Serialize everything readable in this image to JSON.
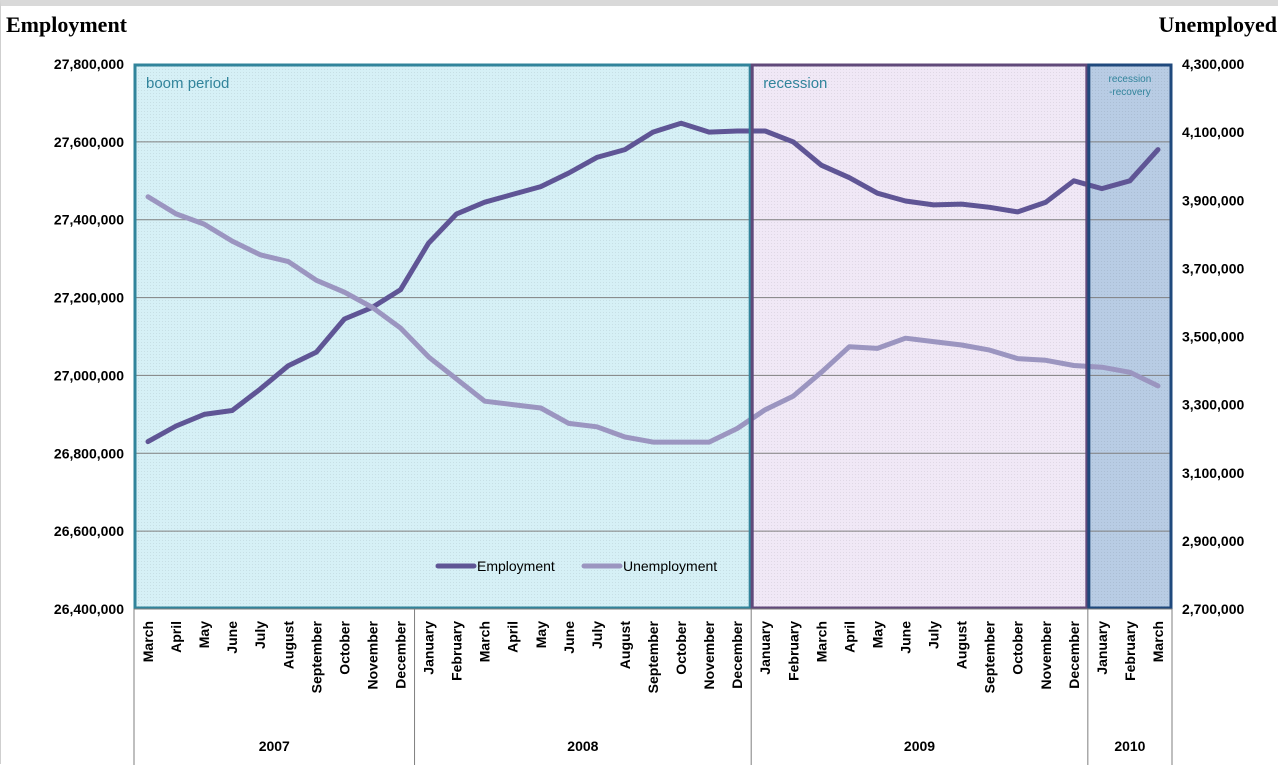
{
  "chart_data": {
    "type": "line",
    "y_left_label": "Employment",
    "y_right_label": "Unemployed",
    "y_left_range": [
      26400000,
      27800000
    ],
    "y_left_ticks": [
      "27,800,000",
      "27,600,000",
      "27,400,000",
      "27,200,000",
      "27,000,000",
      "26,800,000",
      "26,600,000",
      "26,400,000"
    ],
    "y_right_range": [
      2700000,
      4300000
    ],
    "y_right_ticks": [
      "4,300,000",
      "4,100,000",
      "3,900,000",
      "3,700,000",
      "3,500,000",
      "3,300,000",
      "3,100,000",
      "2,900,000",
      "2,700,000"
    ],
    "grid": true,
    "legend_position": "bottom-center",
    "months": [
      "March",
      "April",
      "May",
      "June",
      "July",
      "August",
      "September",
      "October",
      "November",
      "December",
      "January",
      "February",
      "March",
      "April",
      "May",
      "June",
      "July",
      "August",
      "September",
      "October",
      "November",
      "December",
      "January",
      "February",
      "March",
      "April",
      "May",
      "June",
      "July",
      "August",
      "September",
      "October",
      "November",
      "December",
      "January",
      "February",
      "March"
    ],
    "years": [
      {
        "label": "2007",
        "start": 0,
        "count": 10
      },
      {
        "label": "2008",
        "start": 10,
        "count": 12
      },
      {
        "label": "2009",
        "start": 22,
        "count": 12
      },
      {
        "label": "2010",
        "start": 34,
        "count": 3
      }
    ],
    "regions": [
      {
        "label": "boom period",
        "start": 0,
        "end": 22,
        "fill": "#d6f0f6",
        "border": "#31849b"
      },
      {
        "label": "recession",
        "start": 22,
        "end": 34,
        "fill": "#f0e8f6",
        "border": "#60497a"
      },
      {
        "label": "recession\n-recovery",
        "start": 34,
        "end": 37,
        "fill": "#b8cce4",
        "border": "#1f497d"
      }
    ],
    "series": [
      {
        "name": "Employment",
        "axis": "left",
        "color": "#5f5595",
        "values": [
          26830000,
          26870000,
          26900000,
          26910000,
          26965000,
          27025000,
          27060000,
          27145000,
          27175000,
          27220000,
          27340000,
          27415000,
          27445000,
          27465000,
          27485000,
          27520000,
          27560000,
          27580000,
          27625000,
          27648000,
          27625000,
          27628000,
          27628000,
          27600000,
          27540000,
          27508000,
          27468000,
          27448000,
          27438000,
          27440000,
          27432000,
          27420000,
          27445000,
          27500000,
          27480000,
          27500000,
          27580000
        ]
      },
      {
        "name": "Unemployment",
        "axis": "right",
        "color": "#9b95c0",
        "values": [
          3910000,
          3860000,
          3830000,
          3780000,
          3740000,
          3720000,
          3665000,
          3630000,
          3585000,
          3525000,
          3440000,
          3375000,
          3310000,
          3300000,
          3290000,
          3245000,
          3235000,
          3205000,
          3190000,
          3190000,
          3190000,
          3230000,
          3285000,
          3325000,
          3395000,
          3470000,
          3465000,
          3495000,
          3485000,
          3475000,
          3460000,
          3435000,
          3430000,
          3415000,
          3410000,
          3395000,
          3355000
        ]
      }
    ]
  }
}
